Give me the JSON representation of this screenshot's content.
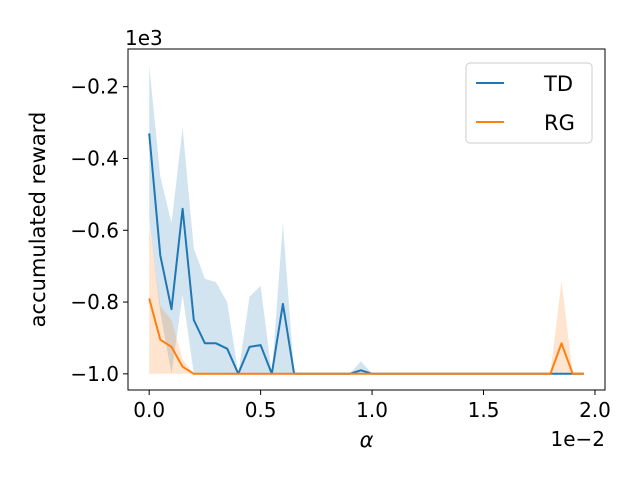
{
  "chart_data": {
    "type": "line",
    "title": "",
    "xlabel": "α",
    "ylabel": "accumulated reward",
    "x_offset_label": "1e−2",
    "y_offset_label": "1e3",
    "xlim": [
      -0.095,
      2.045
    ],
    "ylim": [
      -1.045,
      -0.095
    ],
    "x_ticks": [
      0.0,
      0.5,
      1.0,
      1.5,
      2.0
    ],
    "x_tick_labels": [
      "0.0",
      "0.5",
      "1.0",
      "1.5",
      "2.0"
    ],
    "y_ticks": [
      -1.0,
      -0.8,
      -0.6,
      -0.4,
      -0.2
    ],
    "y_tick_labels": [
      "−1.0",
      "−0.8",
      "−0.6",
      "−0.4",
      "−0.2"
    ],
    "grid": false,
    "legend_position": "top-right",
    "x": [
      0.0,
      0.05,
      0.1,
      0.15,
      0.2,
      0.25,
      0.3,
      0.35,
      0.4,
      0.45,
      0.5,
      0.55,
      0.6,
      0.65,
      0.7,
      0.75,
      0.8,
      0.85,
      0.9,
      0.95,
      1.0,
      1.05,
      1.1,
      1.15,
      1.2,
      1.25,
      1.3,
      1.35,
      1.4,
      1.45,
      1.5,
      1.55,
      1.6,
      1.65,
      1.7,
      1.75,
      1.8,
      1.85,
      1.9,
      1.95
    ],
    "series": [
      {
        "name": "TD",
        "color": "#1f77b4",
        "values": [
          -0.33,
          -0.67,
          -0.82,
          -0.54,
          -0.85,
          -0.915,
          -0.915,
          -0.93,
          -1.0,
          -0.925,
          -0.92,
          -1.0,
          -0.805,
          -1.0,
          -1.0,
          -1.0,
          -1.0,
          -1.0,
          -1.0,
          -0.99,
          -1.0,
          -1.0,
          -1.0,
          -1.0,
          -1.0,
          -1.0,
          -1.0,
          -1.0,
          -1.0,
          -1.0,
          -1.0,
          -1.0,
          -1.0,
          -1.0,
          -1.0,
          -1.0,
          -1.0,
          -1.0,
          -1.0,
          -1.0
        ],
        "lower": [
          -0.57,
          -0.83,
          -1.0,
          -0.78,
          -1.0,
          -1.0,
          -1.0,
          -1.0,
          -1.0,
          -1.0,
          -1.0,
          -1.0,
          -1.0,
          -1.0,
          -1.0,
          -1.0,
          -1.0,
          -1.0,
          -1.0,
          -1.0,
          -1.0,
          -1.0,
          -1.0,
          -1.0,
          -1.0,
          -1.0,
          -1.0,
          -1.0,
          -1.0,
          -1.0,
          -1.0,
          -1.0,
          -1.0,
          -1.0,
          -1.0,
          -1.0,
          -1.0,
          -1.0,
          -1.0,
          -1.0
        ],
        "upper": [
          -0.14,
          -0.45,
          -0.58,
          -0.315,
          -0.65,
          -0.735,
          -0.745,
          -0.8,
          -1.0,
          -0.785,
          -0.755,
          -1.0,
          -0.58,
          -1.0,
          -1.0,
          -1.0,
          -1.0,
          -1.0,
          -1.0,
          -0.965,
          -1.0,
          -1.0,
          -1.0,
          -1.0,
          -1.0,
          -1.0,
          -1.0,
          -1.0,
          -1.0,
          -1.0,
          -1.0,
          -1.0,
          -1.0,
          -1.0,
          -1.0,
          -1.0,
          -1.0,
          -1.0,
          -1.0,
          -1.0
        ]
      },
      {
        "name": "RG",
        "color": "#ff7f0e",
        "values": [
          -0.79,
          -0.905,
          -0.925,
          -0.98,
          -1.0,
          -1.0,
          -1.0,
          -1.0,
          -1.0,
          -1.0,
          -1.0,
          -1.0,
          -1.0,
          -1.0,
          -1.0,
          -1.0,
          -1.0,
          -1.0,
          -1.0,
          -1.0,
          -1.0,
          -1.0,
          -1.0,
          -1.0,
          -1.0,
          -1.0,
          -1.0,
          -1.0,
          -1.0,
          -1.0,
          -1.0,
          -1.0,
          -1.0,
          -1.0,
          -1.0,
          -1.0,
          -1.0,
          -0.915,
          -1.0,
          -1.0
        ],
        "lower": [
          -1.0,
          -1.0,
          -1.0,
          -1.0,
          -1.0,
          -1.0,
          -1.0,
          -1.0,
          -1.0,
          -1.0,
          -1.0,
          -1.0,
          -1.0,
          -1.0,
          -1.0,
          -1.0,
          -1.0,
          -1.0,
          -1.0,
          -1.0,
          -1.0,
          -1.0,
          -1.0,
          -1.0,
          -1.0,
          -1.0,
          -1.0,
          -1.0,
          -1.0,
          -1.0,
          -1.0,
          -1.0,
          -1.0,
          -1.0,
          -1.0,
          -1.0,
          -1.0,
          -1.0,
          -1.0,
          -1.0
        ],
        "upper": [
          -0.58,
          -0.81,
          -0.85,
          -0.96,
          -1.0,
          -1.0,
          -1.0,
          -1.0,
          -1.0,
          -1.0,
          -1.0,
          -1.0,
          -1.0,
          -1.0,
          -1.0,
          -1.0,
          -1.0,
          -1.0,
          -1.0,
          -1.0,
          -1.0,
          -1.0,
          -1.0,
          -1.0,
          -1.0,
          -1.0,
          -1.0,
          -1.0,
          -1.0,
          -1.0,
          -1.0,
          -1.0,
          -1.0,
          -1.0,
          -1.0,
          -1.0,
          -1.0,
          -0.74,
          -1.0,
          -1.0
        ]
      }
    ]
  }
}
